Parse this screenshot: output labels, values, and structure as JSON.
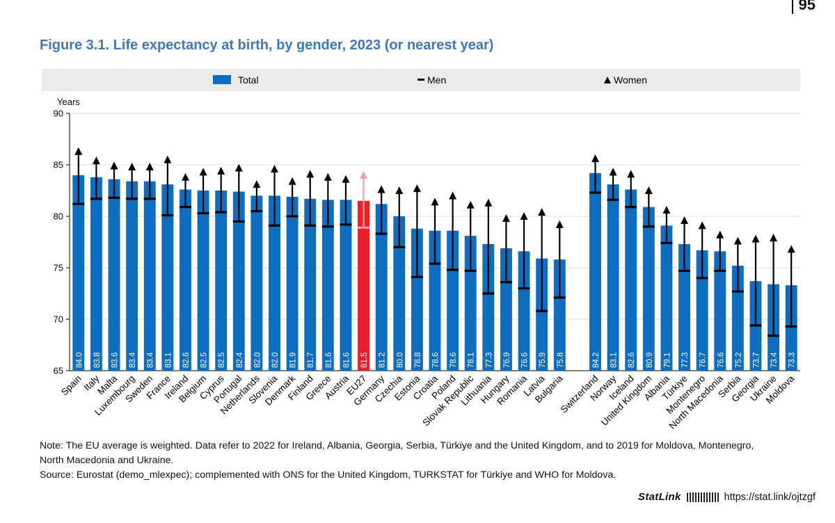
{
  "page_number": "95",
  "figure_title": "Figure 3.1. Life expectancy at birth, by gender, 2023 (or nearest year)",
  "legend": {
    "total": "Total",
    "men": "Men",
    "women": "Women"
  },
  "colors": {
    "total": "#0e6dbf",
    "eu": "#e8202a",
    "eu_marker": "#f4a0a0",
    "marker": "#000000",
    "legend_bg": "#ebebeb"
  },
  "chart_data": {
    "type": "bar",
    "ylabel": "Years",
    "ylim": [
      65,
      90
    ],
    "yticks": [
      65,
      70,
      75,
      80,
      85,
      90
    ],
    "categories": [
      "Spain",
      "Italy",
      "Malta",
      "Luxembourg",
      "Sweden",
      "France",
      "Ireland",
      "Belgium",
      "Cyprus",
      "Portugal",
      "Netherlands",
      "Slovenia",
      "Denmark",
      "Finland",
      "Greece",
      "Austria",
      "EU27",
      "Germany",
      "Czechia",
      "Estonia",
      "Croatia",
      "Poland",
      "Slovak Republic",
      "Lithuania",
      "Hungary",
      "Romania",
      "Latvia",
      "Bulgaria",
      "",
      "Switzerland",
      "Norway",
      "Iceland",
      "United Kingdom",
      "Albania",
      "Türkiye",
      "Montenegro",
      "North Macedonia",
      "Serbia",
      "Georgia",
      "Ukraine",
      "Moldova"
    ],
    "series": [
      {
        "name": "Total",
        "values": [
          84.0,
          83.8,
          83.6,
          83.4,
          83.4,
          83.1,
          82.6,
          82.5,
          82.5,
          82.4,
          82.0,
          82.0,
          81.9,
          81.7,
          81.6,
          81.6,
          81.5,
          81.2,
          80.0,
          78.8,
          78.6,
          78.6,
          78.1,
          77.3,
          76.9,
          76.6,
          75.9,
          75.8,
          null,
          84.2,
          83.1,
          82.6,
          80.9,
          79.1,
          77.3,
          76.7,
          76.6,
          75.2,
          73.7,
          73.4,
          73.3
        ]
      },
      {
        "name": "Men",
        "values": [
          81.2,
          81.7,
          81.8,
          81.7,
          81.7,
          80.1,
          80.9,
          80.3,
          80.4,
          79.5,
          80.5,
          79.1,
          80.0,
          79.1,
          79.0,
          79.2,
          78.9,
          78.3,
          77.0,
          74.1,
          75.4,
          74.8,
          74.7,
          72.5,
          73.6,
          73.0,
          70.8,
          72.1,
          null,
          82.3,
          81.6,
          80.9,
          79.0,
          77.4,
          74.7,
          74.0,
          74.7,
          72.7,
          69.4,
          68.4,
          69.3
        ]
      },
      {
        "name": "Women",
        "values": [
          86.5,
          85.6,
          85.1,
          85.0,
          85.0,
          85.7,
          84.0,
          84.5,
          84.6,
          84.9,
          83.3,
          84.8,
          83.6,
          84.3,
          84.0,
          83.8,
          84.2,
          82.8,
          82.7,
          82.9,
          81.6,
          82.2,
          81.3,
          81.5,
          80.0,
          80.2,
          80.6,
          79.4,
          null,
          85.8,
          84.5,
          84.3,
          82.7,
          80.8,
          79.8,
          79.3,
          78.4,
          77.8,
          78.0,
          78.1,
          77.0
        ]
      }
    ],
    "highlight": "EU27",
    "value_labels": [
      "84.0",
      "83.8",
      "83.6",
      "83.4",
      "83.4",
      "83.1",
      "82.6",
      "82.5",
      "82.5",
      "82.4",
      "82.0",
      "82.0",
      "81.9",
      "81.7",
      "81.6",
      "81.6",
      "81.5",
      "81.2",
      "80.0",
      "78.8",
      "78.6",
      "78.6",
      "78.1",
      "77.3",
      "76.9",
      "76.6",
      "75.9",
      "75.8",
      "",
      "84.2",
      "83.1",
      "82.6",
      "80.9",
      "79.1",
      "77.3",
      "76.7",
      "76.6",
      "75.2",
      "73.7",
      "73.4",
      "73.3"
    ]
  },
  "notes": {
    "line1": "Note: The EU average is weighted. Data refer to 2022 for Ireland, Albania, Georgia, Serbia, Türkiye and the United Kingdom, and to 2019 for Moldova, Montenegro,",
    "line2": "North Macedonia and Ukraine.",
    "line3": "Source: Eurostat (demo_mlexpec); complemented with ONS for the United Kingdom, TURKSTAT for Türkiye and WHO for Moldova."
  },
  "statlink": {
    "brand": "StatLink",
    "url": "https://stat.link/ojtzgf"
  }
}
